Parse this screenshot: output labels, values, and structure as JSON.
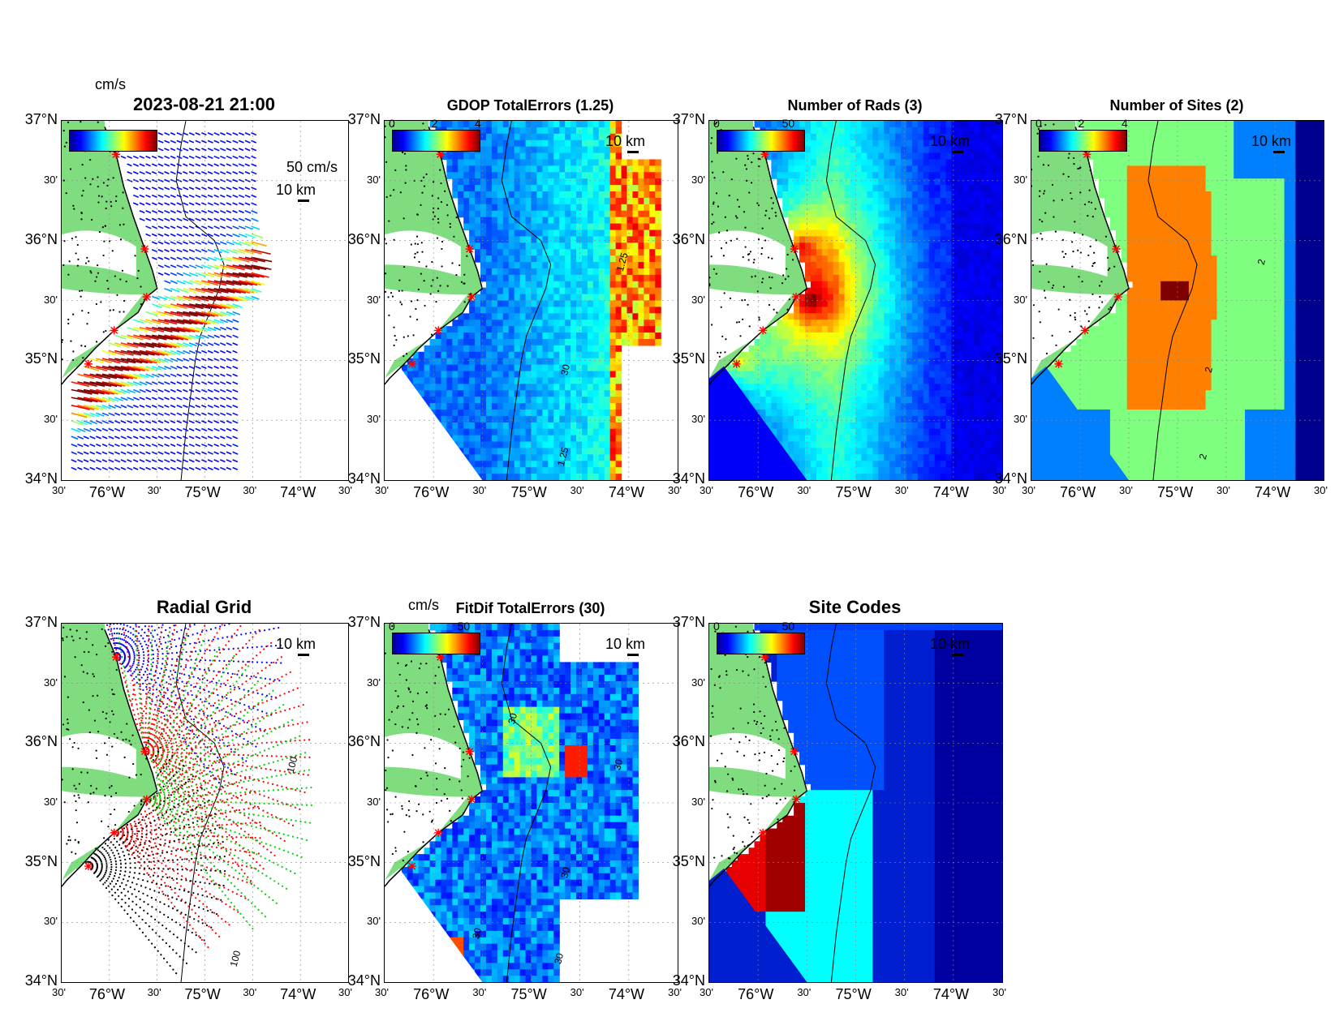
{
  "figure": {
    "lat_ticks": [
      "37°N",
      "30'",
      "36°N",
      "30'",
      "35°N",
      "30'",
      "34°N"
    ],
    "lon_ticks": [
      "30'",
      "76°W",
      "30'",
      "75°W",
      "30'",
      "74°W",
      "30'"
    ],
    "scale_label": "10 km"
  },
  "panels": [
    {
      "id": "vectors",
      "title": "2023-08-21 21:00",
      "colorbar_unit": "cm/s",
      "vector_scale_label": "50 cm/s",
      "cbar_ticks": []
    },
    {
      "id": "gdop",
      "title": "GDOP TotalErrors (1.25)",
      "cbar_ticks": [
        "0",
        "2",
        "4"
      ],
      "contour_labels": [
        "1.25",
        "1.25",
        "30"
      ]
    },
    {
      "id": "nrads",
      "title": "Number of Rads (3)",
      "cbar_ticks": [
        "0",
        "50"
      ]
    },
    {
      "id": "nsites",
      "title": "Number of Sites (2)",
      "cbar_ticks": [
        "0",
        "2",
        "4"
      ],
      "contour_labels": [
        "2",
        "2",
        "2"
      ]
    },
    {
      "id": "radgrid",
      "title": "Radial Grid",
      "contour_labels": [
        "100",
        "100"
      ]
    },
    {
      "id": "fitdif",
      "title": "FitDif TotalErrors (30)",
      "colorbar_unit": "cm/s",
      "cbar_ticks": [
        "0",
        "50"
      ],
      "contour_labels": [
        "30",
        "30",
        "30",
        "30",
        "30"
      ]
    },
    {
      "id": "sitecodes",
      "title": "Site Codes",
      "cbar_ticks": [
        "0",
        "50"
      ]
    }
  ],
  "colors": {
    "land": "#7fdc7f",
    "site_marker": "#ff0000",
    "jet_low": "#00008f",
    "jet_high": "#7f0000"
  },
  "radar_sites_latlon": [
    [
      36.72,
      -75.93
    ],
    [
      35.93,
      -75.63
    ],
    [
      35.53,
      -75.61
    ],
    [
      35.25,
      -75.95
    ],
    [
      34.97,
      -76.22
    ]
  ]
}
